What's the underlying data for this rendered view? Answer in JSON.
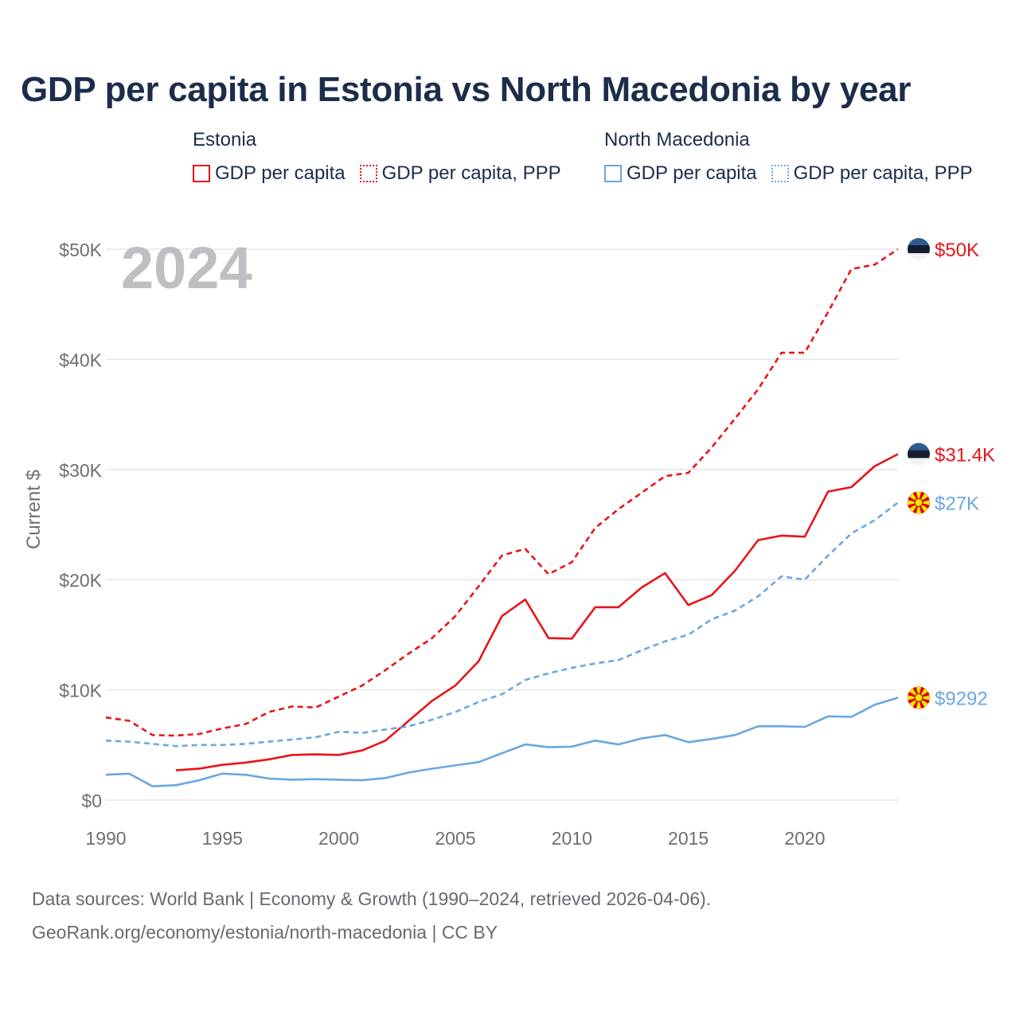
{
  "title": "GDP per capita in Estonia vs North Macedonia by year",
  "legend": {
    "groups": [
      {
        "country": "Estonia",
        "items": [
          {
            "label": "GDP per capita",
            "color": "#e8141a",
            "style": "solid"
          },
          {
            "label": "GDP per capita, PPP",
            "color": "#e8141a",
            "style": "dotted"
          }
        ]
      },
      {
        "country": "North Macedonia",
        "items": [
          {
            "label": "GDP per capita",
            "color": "#6aa7e0",
            "style": "solid"
          },
          {
            "label": "GDP per capita, PPP",
            "color": "#6aa7e0",
            "style": "dotted"
          }
        ]
      }
    ]
  },
  "footer": {
    "line1": "Data sources: World Bank | Economy & Growth (1990–2024, retrieved 2026-04-06).",
    "line2": "GeoRank.org/economy/estonia/north-macedonia | CC BY"
  },
  "chart_data": {
    "type": "line",
    "title": "GDP per capita in Estonia vs North Macedonia by year",
    "watermark_year": "2024",
    "ylabel": "Current $",
    "xlabel": "",
    "xlim": [
      1990,
      2024
    ],
    "ylim": [
      0,
      50000
    ],
    "grid": true,
    "x_ticks": [
      1990,
      1995,
      2000,
      2005,
      2010,
      2015,
      2020
    ],
    "x_tick_labels": [
      "1990",
      "1995",
      "2000",
      "2005",
      "2010",
      "2015",
      "2020"
    ],
    "y_ticks": [
      0,
      10000,
      20000,
      30000,
      40000,
      50000
    ],
    "y_tick_labels": [
      "$0",
      "$10K",
      "$20K",
      "$30K",
      "$40K",
      "$50K"
    ],
    "series": [
      {
        "name": "Estonia GDP per capita, PPP",
        "country": "Estonia",
        "color": "#e8141a",
        "dash": true,
        "start_year": 1990,
        "values": [
          7500,
          7200,
          5900,
          5850,
          6000,
          6500,
          6900,
          8000,
          8500,
          8400,
          9400,
          10400,
          11800,
          13300,
          14700,
          16700,
          19400,
          22200,
          22800,
          20500,
          21600,
          24700,
          26400,
          27900,
          29400,
          29700,
          32000,
          34600,
          37300,
          40600,
          40600,
          44300,
          48200,
          48600,
          50000
        ],
        "end_label": "$50K",
        "flag": "estonia"
      },
      {
        "name": "Estonia GDP per capita",
        "country": "Estonia",
        "color": "#e8141a",
        "dash": false,
        "start_year": 1993,
        "values": [
          2700,
          2850,
          3200,
          3400,
          3700,
          4100,
          4150,
          4100,
          4500,
          5400,
          7200,
          9000,
          10400,
          12600,
          16700,
          18200,
          14700,
          14650,
          17500,
          17500,
          19300,
          20600,
          17700,
          18600,
          20800,
          23600,
          24000,
          23900,
          28000,
          28400,
          30300,
          31400
        ],
        "end_label": "$31.4K",
        "flag": "estonia"
      },
      {
        "name": "North Macedonia GDP per capita, PPP",
        "country": "North Macedonia",
        "color": "#6aa7e0",
        "dash": true,
        "start_year": 1990,
        "values": [
          5400,
          5300,
          5100,
          4900,
          5000,
          5000,
          5100,
          5300,
          5500,
          5700,
          6200,
          6100,
          6400,
          6700,
          7300,
          8000,
          8900,
          9600,
          10900,
          11500,
          12000,
          12400,
          12700,
          13600,
          14400,
          15000,
          16400,
          17200,
          18500,
          20300,
          20000,
          22200,
          24200,
          25400,
          27000
        ],
        "end_label": "$27K",
        "flag": "north-macedonia"
      },
      {
        "name": "North Macedonia GDP per capita",
        "country": "North Macedonia",
        "color": "#6aa7e0",
        "dash": false,
        "start_year": 1990,
        "values": [
          2300,
          2400,
          1250,
          1350,
          1800,
          2400,
          2300,
          1950,
          1850,
          1900,
          1850,
          1800,
          2000,
          2500,
          2850,
          3150,
          3450,
          4250,
          5050,
          4800,
          4850,
          5400,
          5050,
          5600,
          5900,
          5250,
          5550,
          5900,
          6700,
          6700,
          6650,
          7600,
          7550,
          8650,
          9292
        ],
        "end_label": "$9292",
        "flag": "north-macedonia"
      }
    ]
  }
}
